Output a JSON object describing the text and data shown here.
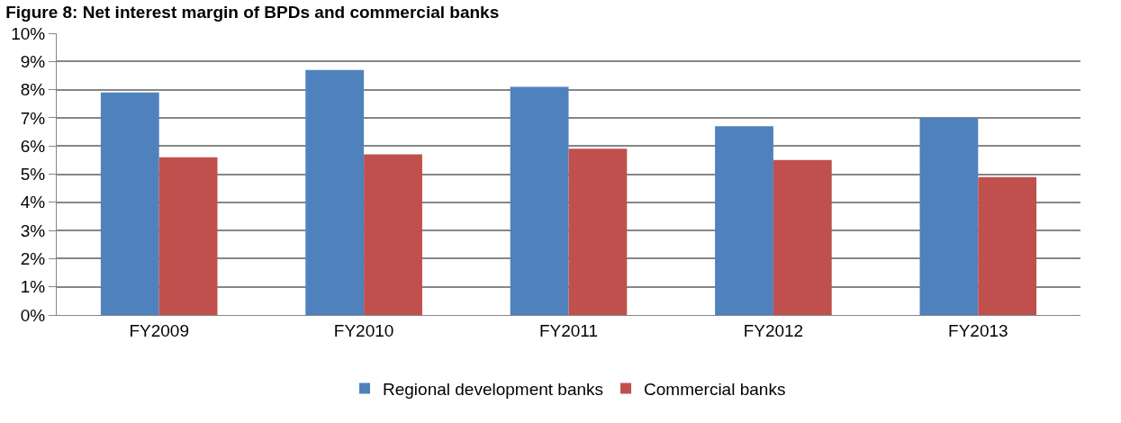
{
  "chart_data": {
    "type": "bar",
    "title": "Figure 8: Net interest margin of BPDs and commercial banks",
    "categories": [
      "FY2009",
      "FY2010",
      "FY2011",
      "FY2012",
      "FY2013"
    ],
    "series": [
      {
        "name": "Regional development banks",
        "color": "#4f81bd",
        "values": [
          7.9,
          8.7,
          8.1,
          6.7,
          7.0
        ]
      },
      {
        "name": "Commercial banks",
        "color": "#c0504d",
        "values": [
          5.6,
          5.7,
          5.9,
          5.5,
          4.9
        ]
      }
    ],
    "ylim": [
      0,
      10
    ],
    "yticks": [
      {
        "value": 0,
        "label": "0%"
      },
      {
        "value": 1,
        "label": "1%"
      },
      {
        "value": 2,
        "label": "2%"
      },
      {
        "value": 3,
        "label": "3%"
      },
      {
        "value": 4,
        "label": "4%"
      },
      {
        "value": 5,
        "label": "5%"
      },
      {
        "value": 6,
        "label": "6%"
      },
      {
        "value": 7,
        "label": "7%"
      },
      {
        "value": 8,
        "label": "8%"
      },
      {
        "value": 9,
        "label": "9%"
      },
      {
        "value": 10,
        "label": "10%"
      }
    ],
    "grid": "y",
    "legend": "bottom"
  }
}
